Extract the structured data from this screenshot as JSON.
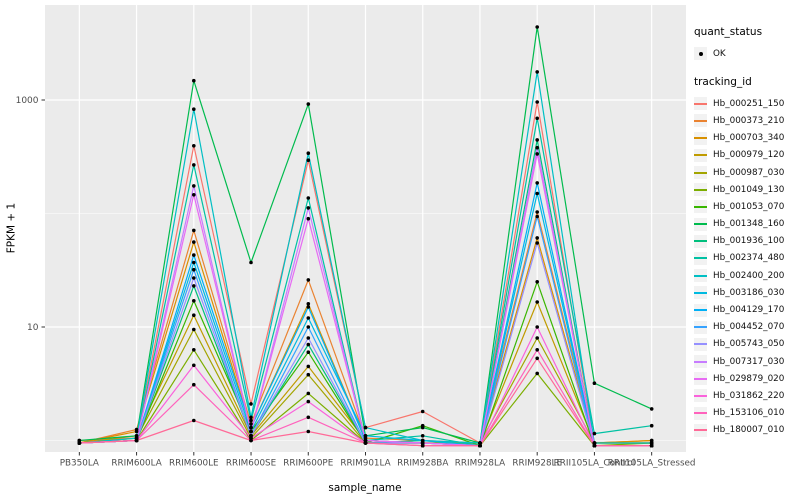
{
  "figure": {
    "background": "#FFFFFF",
    "panel_background": "#EBEBEB",
    "grid_major_color": "#FFFFFF",
    "grid_minor_color": "#F5F5F5",
    "axis_text_color": "#4D4D4D",
    "point_color": "#000000"
  },
  "axes": {
    "x_title": "sample_name",
    "y_title": "FPKM + 1",
    "y_tick_labels": [
      "1000",
      "10"
    ],
    "y_tick_values": [
      1000,
      10
    ],
    "y_minor_values": [
      100,
      1
    ]
  },
  "legend": {
    "quant_title": "quant_status",
    "quant_items": [
      {
        "label": "OK",
        "marker": "point"
      }
    ],
    "tracking_title": "tracking_id"
  },
  "chart_data": {
    "type": "line",
    "title": "",
    "xlabel": "sample_name",
    "ylabel": "FPKM + 1",
    "y_scale": "log10",
    "y_major_ticks": [
      10,
      1000
    ],
    "y_minor_ticks": [
      1,
      100
    ],
    "grid": true,
    "legend_position": "right",
    "point_marker": "black dot (quant_status = OK)",
    "categories": [
      "PB350LA",
      "RRIM600LA",
      "RRIM600LE",
      "RRIM600SE",
      "RRIM600PE",
      "RRIM901LA",
      "RRIM928BA",
      "RRIM928LA",
      "RRIM928LE",
      "RRII105LA_Control",
      "RRII105LA_Stressed"
    ],
    "series": [
      {
        "name": "Hb_000251_150",
        "color": "#F8766D",
        "values": [
          1.0,
          1.05,
          395,
          2.1,
          295,
          1.3,
          1.8,
          0.95,
          960,
          0.95,
          0.95
        ]
      },
      {
        "name": "Hb_000373_210",
        "color": "#EA8331",
        "values": [
          0.95,
          1.25,
          71,
          1.4,
          26,
          1.05,
          1.0,
          0.95,
          103,
          0.95,
          1.0
        ]
      },
      {
        "name": "Hb_000703_340",
        "color": "#D89000",
        "values": [
          0.95,
          1.2,
          56,
          1.3,
          16,
          1.0,
          0.95,
          0.95,
          61,
          0.95,
          1.0
        ]
      },
      {
        "name": "Hb_000979_120",
        "color": "#C09B00",
        "values": [
          0.95,
          1.1,
          12.7,
          1.1,
          4.5,
          1.0,
          0.95,
          0.95,
          16.6,
          0.95,
          0.95
        ]
      },
      {
        "name": "Hb_000987_030",
        "color": "#A3A500",
        "values": [
          0.95,
          1.05,
          9.5,
          1.05,
          3.8,
          0.95,
          0.95,
          0.95,
          8.0,
          0.95,
          0.95
        ]
      },
      {
        "name": "Hb_001049_130",
        "color": "#7CAE00",
        "values": [
          0.95,
          1.0,
          6.3,
          1.0,
          2.6,
          0.95,
          0.95,
          0.9,
          3.9,
          0.9,
          0.95
        ]
      },
      {
        "name": "Hb_001053_070",
        "color": "#39B600",
        "values": [
          0.95,
          1.0,
          17,
          1.2,
          6.0,
          0.95,
          1.35,
          0.9,
          25,
          0.9,
          0.9
        ]
      },
      {
        "name": "Hb_001348_160",
        "color": "#00BB4E",
        "values": [
          1.0,
          1.1,
          1480,
          37,
          920,
          1.1,
          1.3,
          0.95,
          4400,
          3.2,
          1.9
        ]
      },
      {
        "name": "Hb_001936_100",
        "color": "#00BF7D",
        "values": [
          0.95,
          1.0,
          23,
          1.1,
          7.0,
          0.95,
          1.0,
          0.9,
          445,
          0.9,
          0.9
        ]
      },
      {
        "name": "Hb_002374_480",
        "color": "#00C1A3",
        "values": [
          0.95,
          1.0,
          268,
          1.5,
          137,
          1.0,
          1.1,
          0.9,
          690,
          1.15,
          1.35
        ]
      },
      {
        "name": "Hb_002400_200",
        "color": "#00BFC4",
        "values": [
          0.95,
          1.05,
          830,
          1.6,
          340,
          1.3,
          1.0,
          0.95,
          1770,
          0.95,
          0.95
        ]
      },
      {
        "name": "Hb_003186_030",
        "color": "#00BAE0",
        "values": [
          0.95,
          1.0,
          37,
          1.2,
          12,
          1.1,
          1.0,
          0.9,
          150,
          0.9,
          0.9
        ]
      },
      {
        "name": "Hb_004129_170",
        "color": "#00B0F6",
        "values": [
          0.95,
          1.0,
          43,
          1.3,
          15,
          1.0,
          0.95,
          0.9,
          186,
          0.9,
          0.9
        ]
      },
      {
        "name": "Hb_004452_070",
        "color": "#35A2FF",
        "values": [
          0.95,
          1.0,
          32,
          1.1,
          10,
          0.95,
          0.95,
          0.9,
          94,
          0.9,
          0.9
        ]
      },
      {
        "name": "Hb_005743_050",
        "color": "#9590FF",
        "values": [
          0.95,
          1.0,
          27,
          1.1,
          8.0,
          0.95,
          0.95,
          0.9,
          55,
          0.9,
          0.9
        ]
      },
      {
        "name": "Hb_007317_030",
        "color": "#C77CFF",
        "values": [
          0.95,
          1.0,
          175,
          1.2,
          112,
          1.0,
          0.95,
          0.9,
          380,
          0.9,
          0.9
        ]
      },
      {
        "name": "Hb_029879_020",
        "color": "#E76BF3",
        "values": [
          0.95,
          1.0,
          146,
          1.2,
          90,
          1.0,
          0.95,
          0.9,
          335,
          0.9,
          0.9
        ]
      },
      {
        "name": "Hb_031862_220",
        "color": "#FA62DB",
        "values": [
          0.95,
          1.0,
          4.6,
          1.05,
          2.2,
          0.95,
          0.9,
          0.9,
          10,
          0.9,
          0.9
        ]
      },
      {
        "name": "Hb_153106_010",
        "color": "#FF62BC",
        "values": [
          0.95,
          1.0,
          3.1,
          1.0,
          1.6,
          0.95,
          0.9,
          0.9,
          6.3,
          0.9,
          0.9
        ]
      },
      {
        "name": "Hb_180007_010",
        "color": "#FF6A98",
        "values": [
          0.95,
          1.0,
          1.5,
          1.0,
          1.2,
          0.95,
          0.9,
          0.9,
          5.3,
          0.9,
          0.9
        ]
      }
    ]
  }
}
